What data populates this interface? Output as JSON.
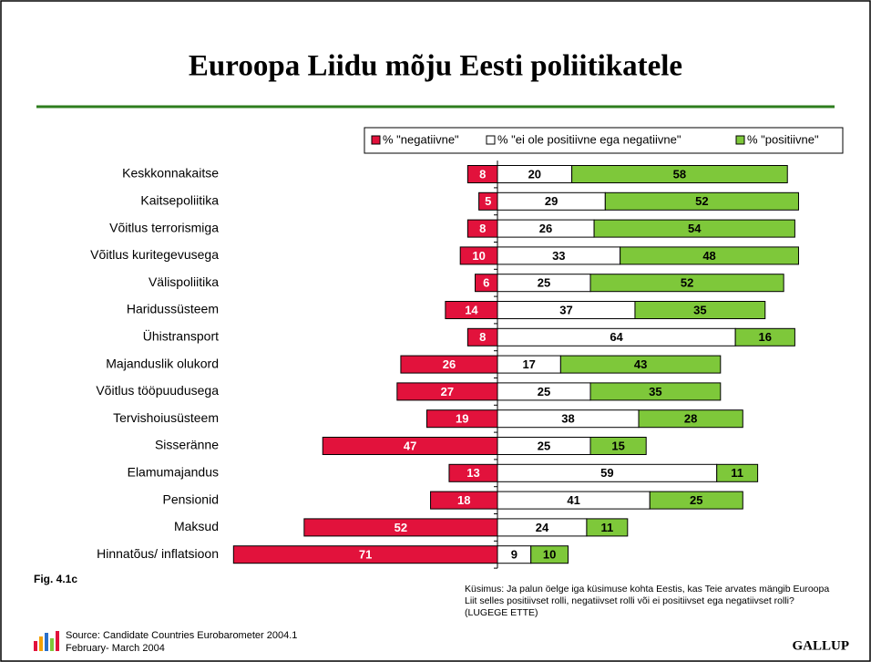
{
  "chart_data": {
    "type": "diverging-bar",
    "title": "Euroopa  Liidu mõju Eesti poliitikatele",
    "categories": [
      "Keskkonnakaitse",
      "Kaitsepoliitika",
      "Võitlus terrorismiga",
      "Võitlus kuritegevusega",
      "Välispoliitika",
      "Haridussüsteem",
      "Ühistransport",
      "Majanduslik olukord",
      "Võitlus tööpuudusega",
      "Tervishoiusüsteem",
      "Sisseränne",
      "Elamumajandus",
      "Pensionid",
      "Maksud",
      "Hinnatõus/ inflatsioon"
    ],
    "series": [
      {
        "name": "% \"negatiivne\"",
        "color": "#e2123c",
        "side": "left",
        "values": [
          8,
          5,
          8,
          10,
          6,
          14,
          8,
          26,
          27,
          19,
          47,
          13,
          18,
          52,
          71
        ]
      },
      {
        "name": "% \"ei ole positiivne ega negatiivne\"",
        "color": "#ffffff",
        "side": "right",
        "values": [
          20,
          29,
          26,
          33,
          25,
          37,
          64,
          17,
          25,
          38,
          25,
          59,
          41,
          24,
          9
        ]
      },
      {
        "name": "% \"positiivne\"",
        "color": "#7ec83a",
        "side": "right",
        "values": [
          58,
          52,
          54,
          48,
          52,
          35,
          16,
          43,
          35,
          28,
          15,
          11,
          25,
          11,
          10
        ]
      }
    ],
    "figure": "Fig. 4.1c",
    "question": [
      "Küsimus: Ja palun öelge iga küsimuse kohta Eestis, kas Teie arvates mängib Euroopa",
      "Liit selles positiivset rolli, negatiivset rolli või ei positiivset ega negatiivset rolli?",
      "(LUGEGE ETTE)"
    ],
    "source": [
      "Source: Candidate Countries Eurobarometer 2004.1",
      "February- March  2004"
    ],
    "brand": "GALLUP"
  }
}
